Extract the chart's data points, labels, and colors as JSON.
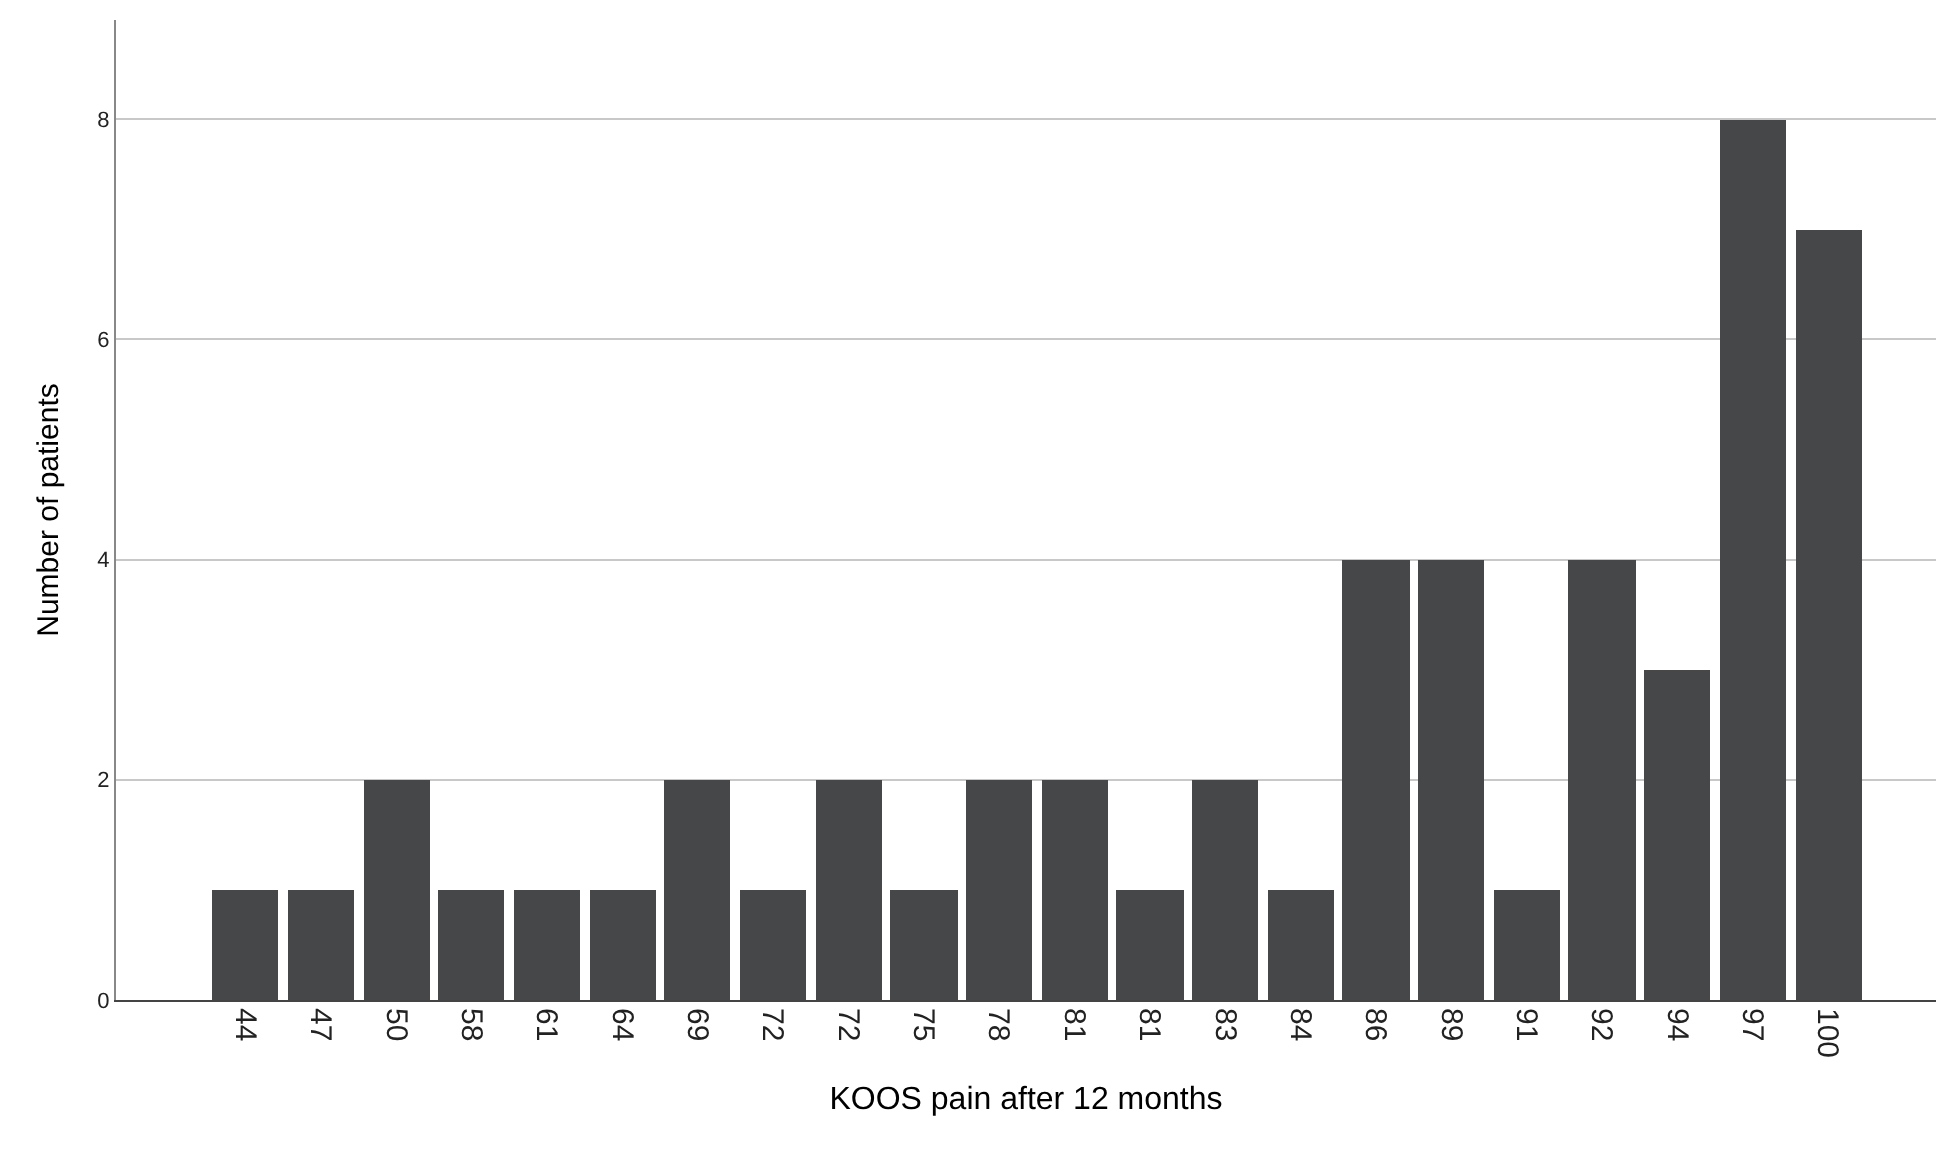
{
  "chart_data": {
    "type": "bar",
    "xlabel": "KOOS pain after 12 months",
    "ylabel": "Number of patients",
    "categories": [
      "44",
      "47",
      "50",
      "58",
      "61",
      "64",
      "69",
      "72",
      "72",
      "75",
      "78",
      "81",
      "81",
      "83",
      "84",
      "86",
      "89",
      "91",
      "92",
      "94",
      "97",
      "100"
    ],
    "values": [
      1,
      1,
      2,
      1,
      1,
      1,
      2,
      1,
      2,
      1,
      2,
      2,
      1,
      2,
      1,
      4,
      4,
      1,
      4,
      3,
      8,
      7
    ],
    "color": "#464748",
    "ylim": [
      0,
      8.9
    ],
    "yticks": [
      0,
      2,
      4,
      6,
      8
    ],
    "grid": "y",
    "legend": false
  }
}
